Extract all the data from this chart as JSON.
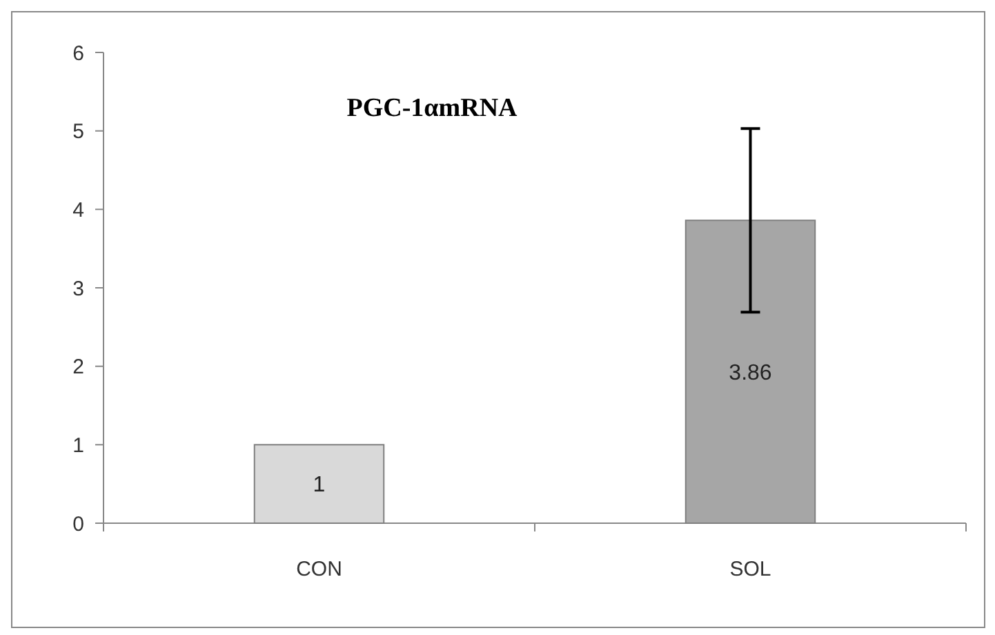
{
  "chart_data": {
    "type": "bar",
    "title": "PGC-1αmRNA",
    "categories": [
      "CON",
      "SOL"
    ],
    "values": [
      1,
      3.86
    ],
    "colors": [
      "#d9d9d9",
      "#a6a6a6"
    ],
    "errors": [
      null,
      1.17
    ],
    "data_labels": true,
    "ylim": [
      0,
      6
    ],
    "yticks": [
      0,
      1,
      2,
      3,
      4,
      5,
      6
    ]
  }
}
